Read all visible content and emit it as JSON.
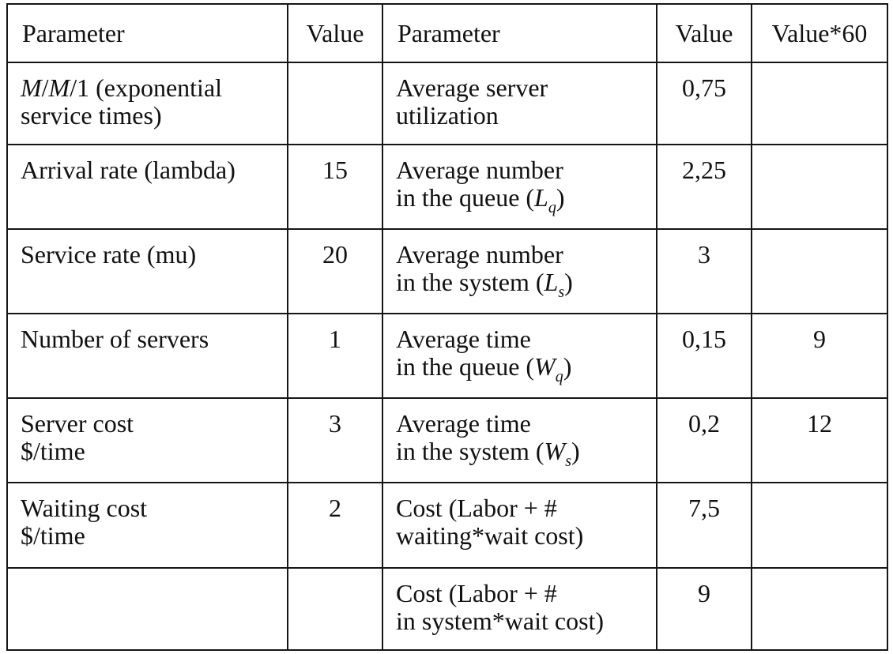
{
  "headers": {
    "left_parameter": "Parameter",
    "left_value": "Value",
    "right_parameter": "Parameter",
    "right_value": "Value",
    "right_value60": "Value*60"
  },
  "rows": [
    {
      "left_label": [
        "M/M/1 (exponential",
        "service times)"
      ],
      "left_value": "",
      "right_label": [
        "Average server",
        "utilization"
      ],
      "right_value": "0,75",
      "right_value60": ""
    },
    {
      "left_label": [
        "Arrival rate (lambda)"
      ],
      "left_value": "15",
      "right_label": [
        "Average number",
        "in the queue (Lq)"
      ],
      "right_value": "2,25",
      "right_value60": ""
    },
    {
      "left_label": [
        "Service rate (mu)"
      ],
      "left_value": "20",
      "right_label": [
        "Average number",
        "in the system (Ls)"
      ],
      "right_value": "3",
      "right_value60": ""
    },
    {
      "left_label": [
        "Number of servers"
      ],
      "left_value": "1",
      "right_label": [
        "Average time",
        "in the queue (Wq)"
      ],
      "right_value": "0,15",
      "right_value60": "9"
    },
    {
      "left_label": [
        "Server cost",
        "$/time"
      ],
      "left_value": "3",
      "right_label": [
        "Average time",
        "in the system (Ws)"
      ],
      "right_value": "0,2",
      "right_value60": "12"
    },
    {
      "left_label": [
        "Waiting cost",
        "$/time"
      ],
      "left_value": "2",
      "right_label": [
        "Cost (Labor + #",
        "waiting*wait cost)"
      ],
      "right_value": "7,5",
      "right_value60": ""
    },
    {
      "left_label": [],
      "left_value": "",
      "right_label": [
        "Cost (Labor + #",
        "in system*wait cost)"
      ],
      "right_value": "9",
      "right_value60": ""
    }
  ]
}
